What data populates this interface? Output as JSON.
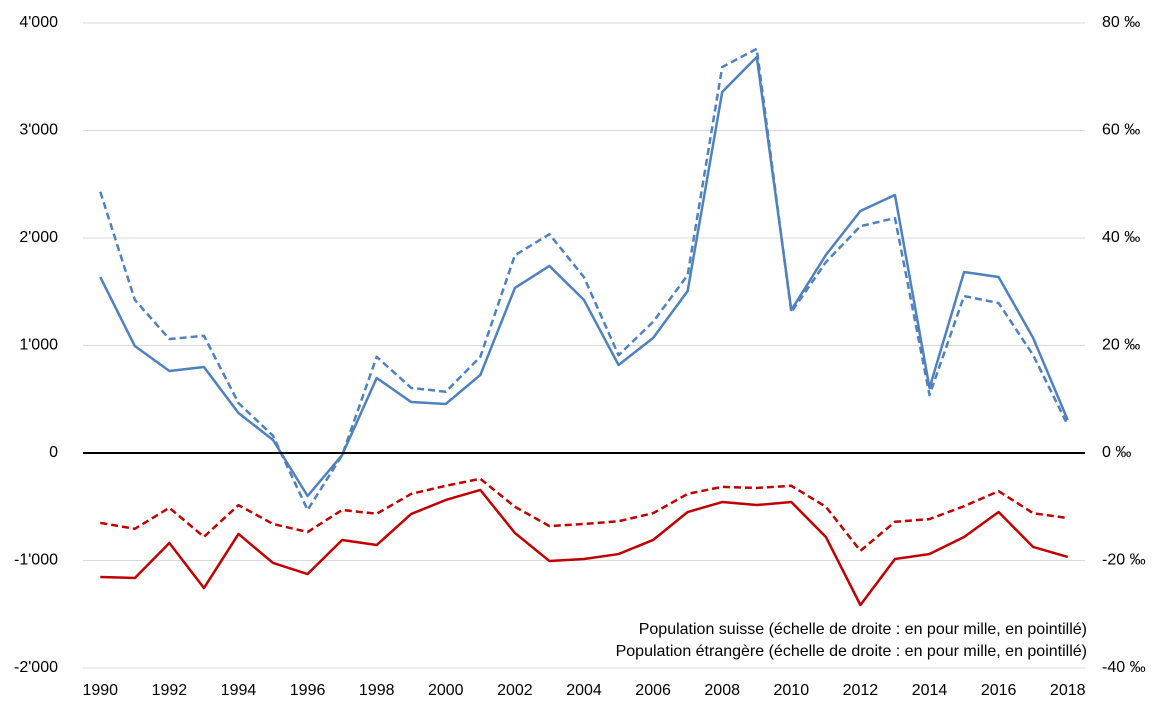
{
  "chart_data": {
    "type": "line",
    "x": [
      1990,
      1991,
      1992,
      1993,
      1994,
      1995,
      1996,
      1997,
      1998,
      1999,
      2000,
      2001,
      2002,
      2003,
      2004,
      2005,
      2006,
      2007,
      2008,
      2009,
      2010,
      2011,
      2012,
      2013,
      2014,
      2015,
      2016,
      2017,
      2018
    ],
    "xlim": [
      1989.5,
      2018.5
    ],
    "xticks": [
      1990,
      1992,
      1994,
      1996,
      1998,
      2000,
      2002,
      2004,
      2006,
      2008,
      2010,
      2012,
      2014,
      2016,
      2018
    ],
    "ylim": [
      -2000,
      4000
    ],
    "yticks": [
      {
        "value": -2000,
        "label": "-2'000"
      },
      {
        "value": -1000,
        "label": "-1'000"
      },
      0,
      {
        "value": 1000,
        "label": "1'000"
      },
      {
        "value": 2000,
        "label": "2'000"
      },
      {
        "value": 3000,
        "label": "3'000"
      },
      {
        "value": 4000,
        "label": "4'000"
      }
    ],
    "y2lim": [
      -40,
      80
    ],
    "y2ticks": [
      {
        "value": -40,
        "label": "-40 ‰"
      },
      {
        "value": -20,
        "label": "-20 ‰"
      },
      {
        "value": 0,
        "label": "0 ‰"
      },
      {
        "value": 20,
        "label": "20 ‰"
      },
      {
        "value": 40,
        "label": "40 ‰"
      },
      {
        "value": 60,
        "label": "60 ‰"
      },
      {
        "value": 80,
        "label": "80 ‰"
      }
    ],
    "grid": true,
    "grid_color": "#d9d9d9",
    "zero_line_color": "#000000",
    "negative_tick_color": "#c00000",
    "legend_position": "lower right",
    "legend": [
      {
        "label": "Population suisse (échelle de droite : en pour mille, en pointillé)",
        "color": "#c00000"
      },
      {
        "label": "Population étrangère (échelle de droite : en pour mille, en pointillé)",
        "color": "#4f81bd"
      }
    ],
    "series": [
      {
        "color": "#4f81bd",
        "dashed": false,
        "axis": "y",
        "values": [
          1637,
          995,
          763,
          800,
          372,
          121,
          -400,
          -19,
          698,
          474,
          456,
          726,
          1535,
          1740,
          1423,
          819,
          1070,
          1507,
          3358,
          3684,
          1330,
          1842,
          2251,
          2400,
          605,
          1684,
          1637,
          1070,
          307
        ]
      },
      {
        "color": "#4f81bd",
        "dashed": true,
        "axis": "y2",
        "values": [
          48.6,
          28.5,
          21.2,
          21.8,
          9.3,
          3.2,
          -10.6,
          -0.4,
          17.9,
          12.1,
          11.4,
          17.9,
          36.8,
          40.7,
          32.7,
          18.2,
          24.4,
          33.1,
          71.8,
          75.2,
          26.2,
          35.5,
          42.2,
          43.7,
          10.8,
          29.2,
          27.9,
          18.2,
          5.2
        ]
      },
      {
        "color": "#c00000",
        "dashed": false,
        "axis": "y",
        "values": [
          -1153,
          -1163,
          -837,
          -1256,
          -753,
          -1023,
          -1126,
          -809,
          -856,
          -567,
          -437,
          -344,
          -744,
          -1005,
          -986,
          -940,
          -809,
          -549,
          -456,
          -484,
          -456,
          -781,
          -1414,
          -986,
          -940,
          -781,
          -549,
          -874,
          -967
        ]
      },
      {
        "color": "#c00000",
        "dashed": true,
        "axis": "y2",
        "values": [
          -13.0,
          -14.1,
          -10.2,
          -15.6,
          -9.7,
          -13.2,
          -14.7,
          -10.6,
          -11.3,
          -7.6,
          -6.1,
          -4.8,
          -10.0,
          -13.6,
          -13.2,
          -12.7,
          -11.2,
          -7.6,
          -6.3,
          -6.5,
          -6.1,
          -10.0,
          -18.2,
          -12.8,
          -12.3,
          -9.9,
          -7.1,
          -11.2,
          -12.1
        ]
      }
    ]
  }
}
